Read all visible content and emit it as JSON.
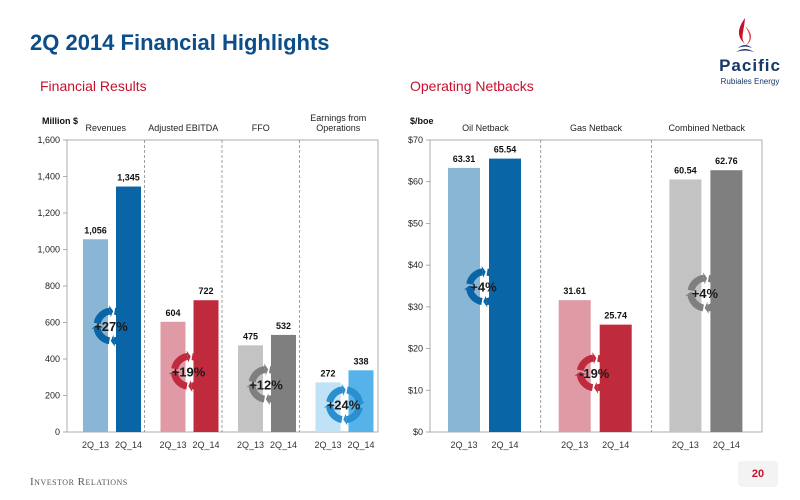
{
  "page": {
    "title": "2Q 2014 Financial Highlights",
    "footer": "Investor Relations",
    "page_number": "20",
    "logo_text": "Pacific",
    "logo_subtext": "Rubiales Energy"
  },
  "colors": {
    "title": "#0b4e8a",
    "section": "#c8102e",
    "blue_light": "#8ab6d6",
    "blue_dark": "#0a65a6",
    "red_light": "#df9aa6",
    "red_dark": "#bf2a3c",
    "gray_light": "#c3c3c3",
    "gray_dark": "#7f7f7f",
    "sky_light": "#bfe2f6",
    "sky_dark": "#55b3ea"
  },
  "chart_data": [
    {
      "type": "bar",
      "title": "Financial Results",
      "ylabel": "Million $",
      "ylim": [
        0,
        1600
      ],
      "yticks": [
        0,
        200,
        400,
        600,
        800,
        1000,
        1200,
        1400,
        1600
      ],
      "ytick_labels": [
        "0",
        "200",
        "400",
        "600",
        "800",
        "1,000",
        "1,200",
        "1,400",
        "1,600"
      ],
      "categories": [
        "2Q_13",
        "2Q_14"
      ],
      "groups": [
        {
          "name": "Revenues",
          "values": [
            1056,
            1345
          ],
          "labels": [
            "1,056",
            "1,345"
          ],
          "change": "+27%",
          "light": "#8ab6d6",
          "dark": "#0a65a6",
          "arrow": "#0a65a6"
        },
        {
          "name": "Adjusted EBITDA",
          "values": [
            604,
            722
          ],
          "labels": [
            "604",
            "722"
          ],
          "change": "+19%",
          "light": "#df9aa6",
          "dark": "#bf2a3c",
          "arrow": "#bf2a3c"
        },
        {
          "name": "FFO",
          "values": [
            475,
            532
          ],
          "labels": [
            "475",
            "532"
          ],
          "change": "+12%",
          "light": "#c3c3c3",
          "dark": "#7f7f7f",
          "arrow": "#7f7f7f"
        },
        {
          "name": "Earnings from Operations",
          "values": [
            272,
            338
          ],
          "labels": [
            "272",
            "338"
          ],
          "change": "+24%",
          "light": "#bfe2f6",
          "dark": "#55b3ea",
          "arrow": "#2a8fd0"
        }
      ],
      "grid": false
    },
    {
      "type": "bar",
      "title": "Operating Netbacks",
      "ylabel": "$/boe",
      "ylim": [
        0,
        70
      ],
      "yticks": [
        0,
        10,
        20,
        30,
        40,
        50,
        60,
        70
      ],
      "ytick_labels": [
        "$0",
        "$10",
        "$20",
        "$30",
        "$40",
        "$50",
        "$60",
        "$70"
      ],
      "categories": [
        "2Q_13",
        "2Q_14"
      ],
      "groups": [
        {
          "name": "Oil Netback",
          "values": [
            63.31,
            65.54
          ],
          "labels": [
            "63.31",
            "65.54"
          ],
          "change": "+4%",
          "light": "#8ab6d6",
          "dark": "#0a65a6",
          "arrow": "#0a65a6"
        },
        {
          "name": "Gas Netback",
          "values": [
            31.61,
            25.74
          ],
          "labels": [
            "31.61",
            "25.74"
          ],
          "change": "-19%",
          "light": "#df9aa6",
          "dark": "#bf2a3c",
          "arrow": "#bf2a3c"
        },
        {
          "name": "Combined Netback",
          "values": [
            60.54,
            62.76
          ],
          "labels": [
            "60.54",
            "62.76"
          ],
          "change": "+4%",
          "light": "#c3c3c3",
          "dark": "#7f7f7f",
          "arrow": "#7f7f7f"
        }
      ],
      "grid": false
    }
  ]
}
